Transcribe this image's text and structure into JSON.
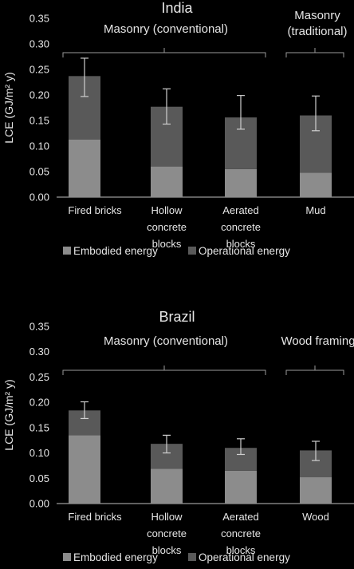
{
  "chart_data": [
    {
      "type": "bar",
      "stacked": true,
      "title": "India",
      "ylabel": "LCE (GJ/m² y)",
      "ylim": [
        0,
        0.35
      ],
      "yticks": [
        "0.00",
        "0.05",
        "0.10",
        "0.15",
        "0.20",
        "0.25",
        "0.30",
        "0.35"
      ],
      "categories": [
        [
          "Fired bricks"
        ],
        [
          "Hollow",
          "concrete",
          "blocks"
        ],
        [
          "Aerated",
          "concrete",
          "blocks"
        ],
        [
          "Mud"
        ]
      ],
      "series": [
        {
          "name": "Embodied energy",
          "color": "#8c8c8c",
          "values": [
            0.113,
            0.06,
            0.055,
            0.048
          ]
        },
        {
          "name": "Operational energy",
          "color": "#595959",
          "values": [
            0.124,
            0.117,
            0.101,
            0.112
          ]
        }
      ],
      "error_bars": [
        [
          0.197,
          0.272
        ],
        [
          0.143,
          0.212
        ],
        [
          0.133,
          0.199
        ],
        [
          0.13,
          0.198
        ]
      ],
      "groups": [
        {
          "label": "Masonry (conventional)",
          "span": [
            0,
            2
          ]
        },
        {
          "label": "Masonry",
          "label2": "(traditional)",
          "span": [
            3,
            3
          ]
        }
      ],
      "grid": false
    },
    {
      "type": "bar",
      "stacked": true,
      "title": "Brazil",
      "ylabel": "LCE (GJ/m² y)",
      "ylim": [
        0,
        0.35
      ],
      "yticks": [
        "0.00",
        "0.05",
        "0.10",
        "0.15",
        "0.20",
        "0.25",
        "0.30",
        "0.35"
      ],
      "categories": [
        [
          "Fired bricks"
        ],
        [
          "Hollow",
          "concrete",
          "blocks"
        ],
        [
          "Aerated",
          "concrete",
          "blocks"
        ],
        [
          "Wood"
        ]
      ],
      "series": [
        {
          "name": "Embodied energy",
          "color": "#8c8c8c",
          "values": [
            0.135,
            0.069,
            0.065,
            0.052
          ]
        },
        {
          "name": "Operational energy",
          "color": "#595959",
          "values": [
            0.049,
            0.049,
            0.045,
            0.053
          ]
        }
      ],
      "error_bars": [
        [
          0.168,
          0.201
        ],
        [
          0.1,
          0.135
        ],
        [
          0.097,
          0.128
        ],
        [
          0.085,
          0.123
        ]
      ],
      "groups": [
        {
          "label": "Masonry (conventional)",
          "span": [
            0,
            2
          ]
        },
        {
          "label": "Wood framing",
          "span": [
            3,
            3
          ]
        }
      ],
      "grid": false
    }
  ]
}
